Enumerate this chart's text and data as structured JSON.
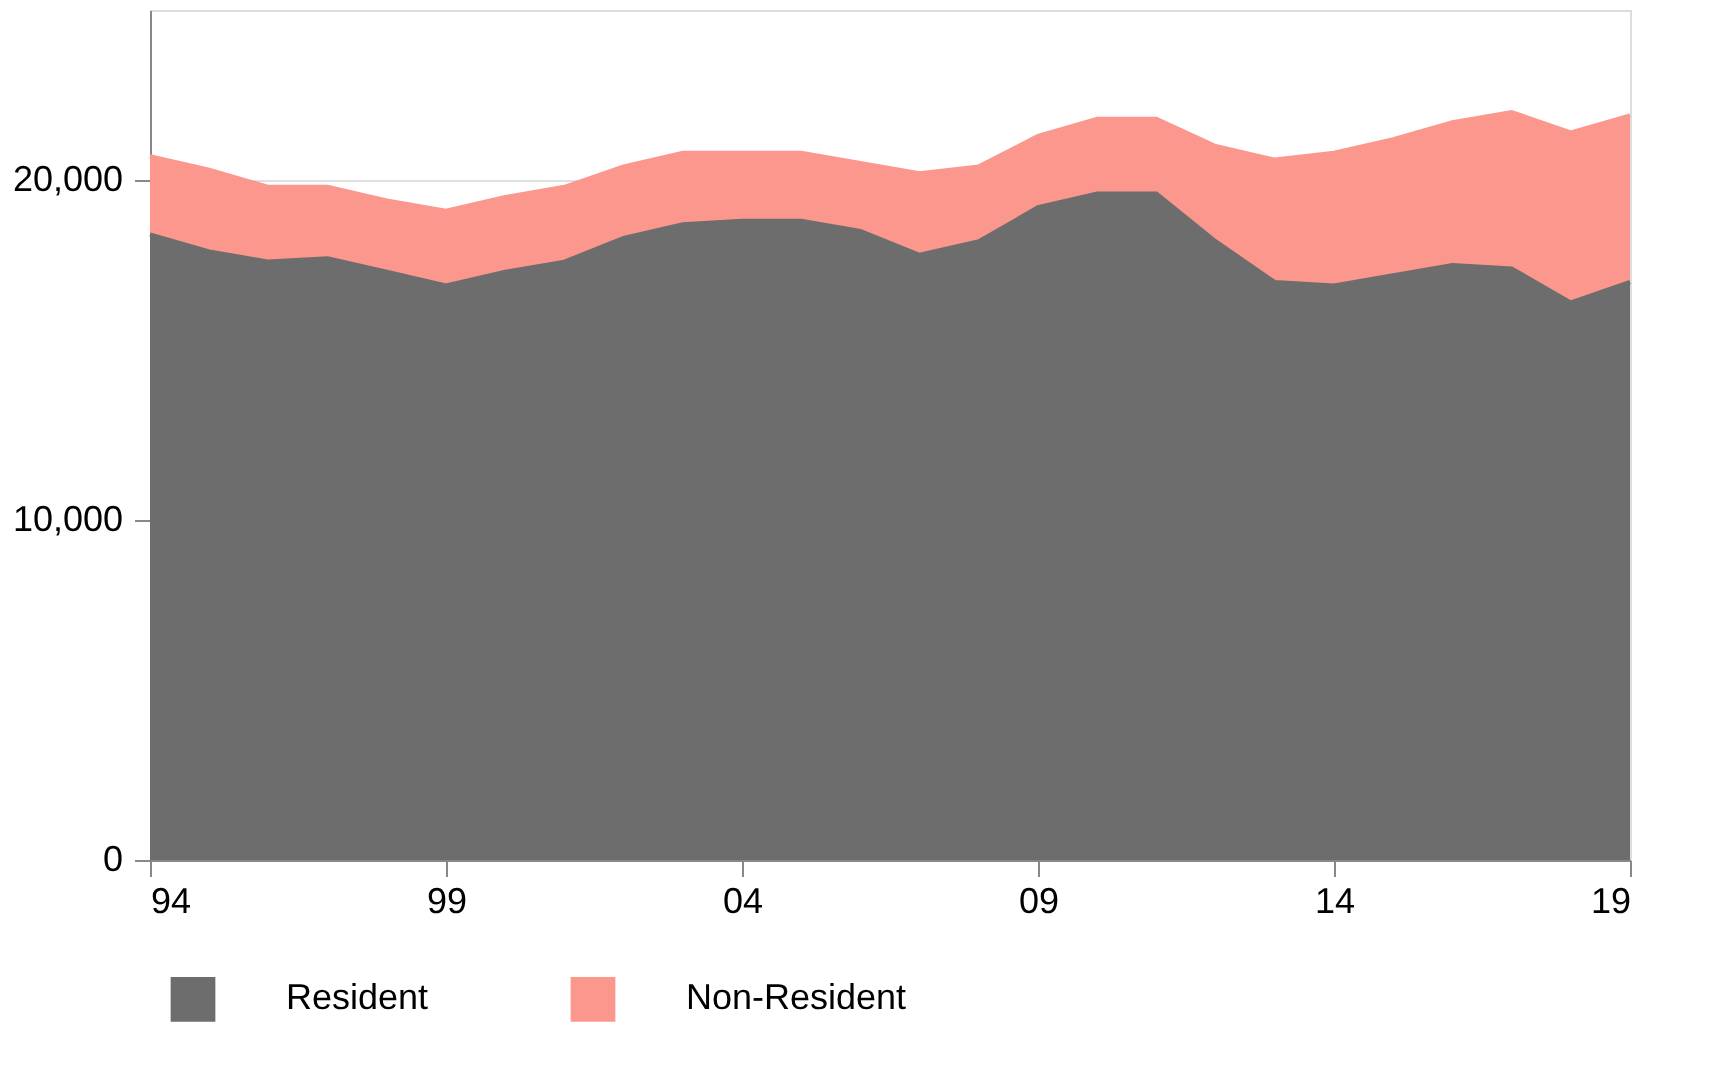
{
  "chart_data": {
    "type": "area",
    "stacked": true,
    "x": [
      1994,
      1995,
      1996,
      1997,
      1998,
      1999,
      2000,
      2001,
      2002,
      2003,
      2004,
      2005,
      2006,
      2007,
      2008,
      2009,
      2010,
      2011,
      2012,
      2013,
      2014,
      2015,
      2016,
      2017,
      2018,
      2019
    ],
    "series": [
      {
        "name": "Resident",
        "color": "#6d6d6d",
        "values": [
          18400,
          17900,
          17600,
          17700,
          17300,
          16900,
          17300,
          17600,
          18300,
          18700,
          18800,
          18800,
          18500,
          17800,
          18200,
          19200,
          19600,
          19600,
          18200,
          17000,
          16900,
          17200,
          17500,
          17400,
          16400,
          17000
        ]
      },
      {
        "name": "Non-Resident",
        "color": "#fc978e",
        "values": [
          2300,
          2400,
          2200,
          2100,
          2100,
          2200,
          2200,
          2200,
          2100,
          2100,
          2000,
          2000,
          2000,
          2400,
          2200,
          2100,
          2200,
          2200,
          2800,
          3600,
          3900,
          4000,
          4200,
          4600,
          5000,
          4900
        ]
      }
    ],
    "xlim": [
      1994,
      2019
    ],
    "xticks": [
      {
        "value": 1994,
        "label": "94"
      },
      {
        "value": 1999,
        "label": "99"
      },
      {
        "value": 2004,
        "label": "04"
      },
      {
        "value": 2009,
        "label": "09"
      },
      {
        "value": 2014,
        "label": "14"
      },
      {
        "value": 2019,
        "label": "19"
      }
    ],
    "ylim": [
      0,
      25000
    ],
    "yticks": [
      {
        "value": 0,
        "label": "0"
      },
      {
        "value": 10000,
        "label": "10,000"
      },
      {
        "value": 20000,
        "label": "20,000"
      }
    ],
    "grid": "y",
    "legend": "bottom"
  }
}
